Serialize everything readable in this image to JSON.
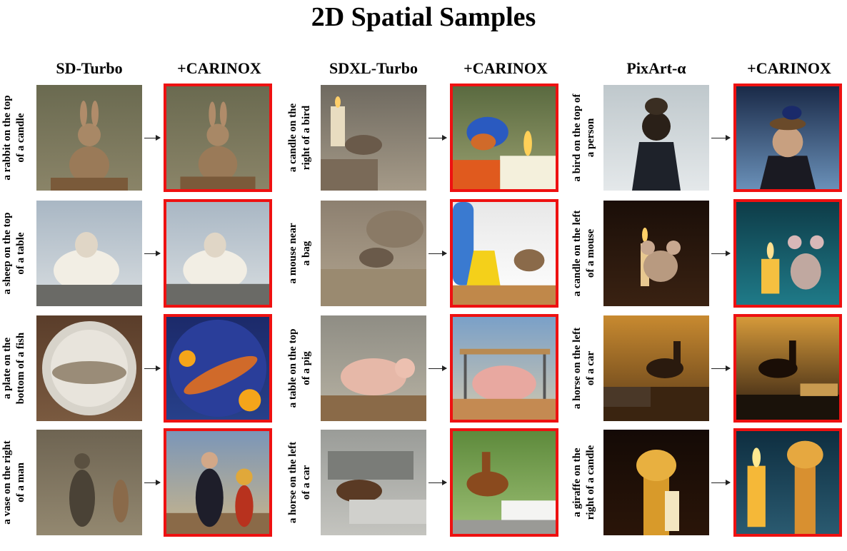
{
  "title": "2D Spatial Samples",
  "groups": [
    {
      "base_label": "SD-Turbo",
      "ours_label": "+CARINOX",
      "rows": [
        {
          "line1": "a rabbit on the top",
          "line2": "of a candle",
          "base_scene": "rabbit",
          "ours_scene": "rabbit"
        },
        {
          "line1": "a sheep on the top",
          "line2": "of a table",
          "base_scene": "sheep",
          "ours_scene": "sheep"
        },
        {
          "line1": "a plate on the",
          "line2": "bottom of a fish",
          "base_scene": "fish-plate",
          "ours_scene": "fish-plate-blue"
        },
        {
          "line1": "a vase on the right",
          "line2": "of a man",
          "base_scene": "man-vase-sepia",
          "ours_scene": "man-vase"
        }
      ]
    },
    {
      "base_label": "SDXL-Turbo",
      "ours_label": "+CARINOX",
      "rows": [
        {
          "line1": "a candle on the",
          "line2": "right of a bird",
          "base_scene": "bird-candle-dim",
          "ours_scene": "bird-candle"
        },
        {
          "line1": "a mouse near",
          "line2": "a bag",
          "base_scene": "mouse-bag-dim",
          "ours_scene": "mouse-bag"
        },
        {
          "line1": "a table on the top",
          "line2": "of a pig",
          "base_scene": "pig",
          "ours_scene": "pig-table"
        },
        {
          "line1": "a horse on the left",
          "line2": "of a car",
          "base_scene": "horse-car-grey",
          "ours_scene": "horse-car"
        }
      ]
    },
    {
      "base_label": "PixArt-α",
      "ours_label": "+CARINOX",
      "rows": [
        {
          "line1": "a bird on the top of",
          "line2": "a person",
          "base_scene": "bird-person-dark",
          "ours_scene": "bird-person"
        },
        {
          "line1": "a candle on the left",
          "line2": "of a mouse",
          "base_scene": "candle-mouse-dark",
          "ours_scene": "candle-mouse"
        },
        {
          "line1": "a horse on the left",
          "line2": "of a car",
          "base_scene": "horse-sunset",
          "ours_scene": "horse-sunset-road"
        },
        {
          "line1": "a giraffe on the",
          "line2": "right of a candle",
          "base_scene": "giraffe-dark",
          "ours_scene": "giraffe-candle"
        }
      ]
    }
  ],
  "colors": {
    "highlight_border": "#ee1111"
  }
}
